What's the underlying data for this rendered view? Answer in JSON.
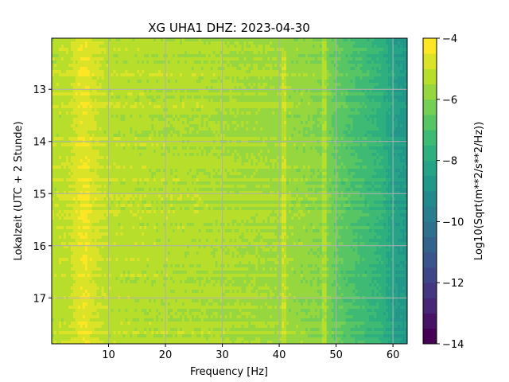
{
  "chart_data": {
    "type": "heatmap",
    "title": "XG UHA1  DHZ: 2023-04-30",
    "xlabel": "Frequency [Hz]",
    "ylabel": "Lokalzeit (UTC + 2 Stunde)",
    "xlim": [
      0,
      62.5
    ],
    "ylim": [
      17.88,
      12.02
    ],
    "y_inverted": true,
    "x_ticks": [
      10,
      20,
      30,
      40,
      50,
      60
    ],
    "y_ticks": [
      13,
      14,
      15,
      16,
      17
    ],
    "grid": true,
    "grid_color": "#b0b0b0",
    "colormap": "viridis",
    "colorbar": {
      "label": "Log10(Sqrt(m**2/s**2/Hz))",
      "range": [
        -14,
        -4
      ],
      "ticks": [
        -4,
        -6,
        -8,
        -10,
        -12,
        -14
      ],
      "levels": 20
    },
    "frequency_profile": {
      "frequency_hz": [
        0,
        3,
        5,
        6,
        7,
        10,
        20,
        30,
        40,
        45,
        48,
        50,
        52,
        55,
        58,
        60,
        62.5
      ],
      "log10_amplitude": [
        -5.2,
        -5.1,
        -4.6,
        -4.5,
        -4.8,
        -5.2,
        -5.3,
        -5.4,
        -5.6,
        -5.8,
        -6.0,
        -6.5,
        -6.8,
        -7.2,
        -7.6,
        -8.3,
        -8.7
      ]
    },
    "features": [
      {
        "label": "band",
        "frequency_hz": 5.5,
        "level": -4.5
      },
      {
        "label": "trace",
        "frequency_hz": 40.7,
        "hours": [
          12.25,
          17.88
        ]
      },
      {
        "label": "trace",
        "frequency_hz": 48,
        "hours": [
          12.02,
          17.88
        ]
      }
    ]
  }
}
